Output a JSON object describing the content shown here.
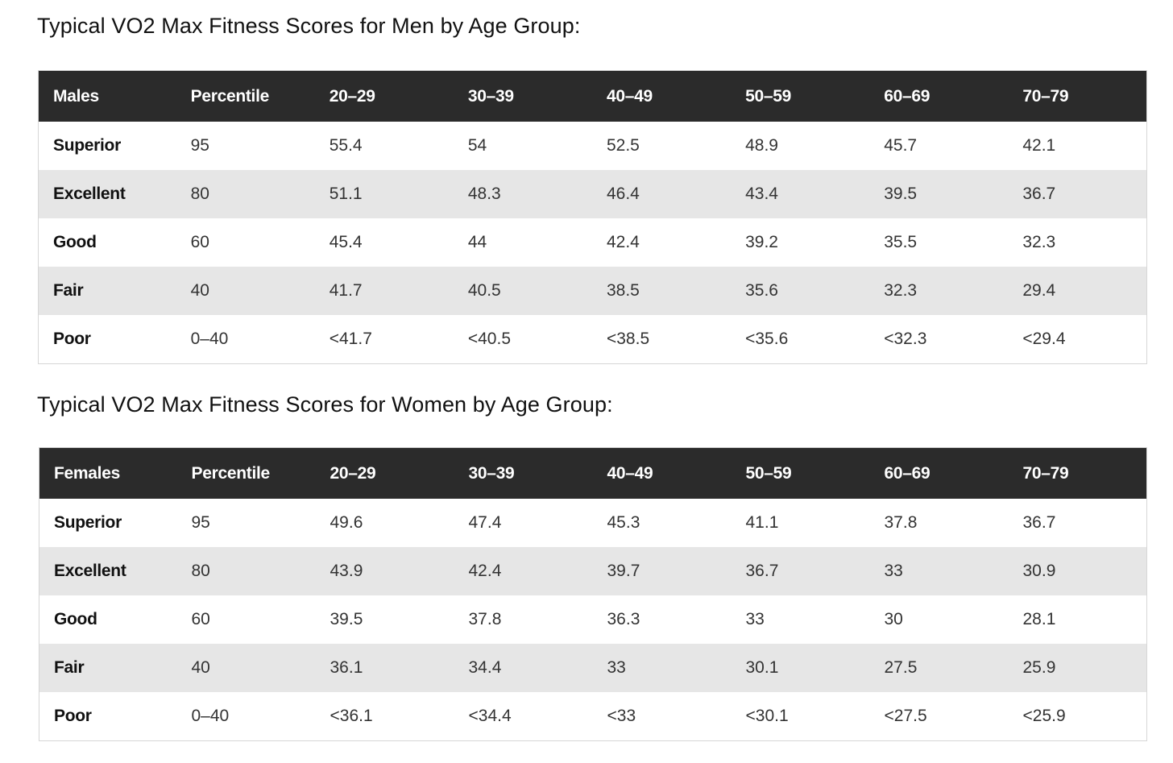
{
  "men": {
    "heading": "Typical VO2 Max Fitness Scores for Men by Age Group:",
    "headers": [
      "Males",
      "Percentile",
      "20–29",
      "30–39",
      "40–49",
      "50–59",
      "60–69",
      "70–79"
    ],
    "rows": [
      [
        "Superior",
        "95",
        "55.4",
        "54",
        "52.5",
        "48.9",
        "45.7",
        "42.1"
      ],
      [
        "Excellent",
        "80",
        "51.1",
        "48.3",
        "46.4",
        "43.4",
        "39.5",
        "36.7"
      ],
      [
        "Good",
        "60",
        "45.4",
        "44",
        "42.4",
        "39.2",
        "35.5",
        "32.3"
      ],
      [
        "Fair",
        "40",
        "41.7",
        "40.5",
        "38.5",
        "35.6",
        "32.3",
        "29.4"
      ],
      [
        "Poor",
        "0–40",
        "<41.7",
        "<40.5",
        "<38.5",
        "<35.6",
        "<32.3",
        "<29.4"
      ]
    ]
  },
  "women": {
    "heading": "Typical VO2 Max Fitness Scores for Women by Age Group:",
    "headers": [
      "Females",
      "Percentile",
      "20–29",
      "30–39",
      "40–49",
      "50–59",
      "60–69",
      "70–79"
    ],
    "rows": [
      [
        "Superior",
        "95",
        "49.6",
        "47.4",
        "45.3",
        "41.1",
        "37.8",
        "36.7"
      ],
      [
        "Excellent",
        "80",
        "43.9",
        "42.4",
        "39.7",
        "36.7",
        "33",
        "30.9"
      ],
      [
        "Good",
        "60",
        "39.5",
        "37.8",
        "36.3",
        "33",
        "30",
        "28.1"
      ],
      [
        "Fair",
        "40",
        "36.1",
        "34.4",
        "33",
        "30.1",
        "27.5",
        "25.9"
      ],
      [
        "Poor",
        "0–40",
        "<36.1",
        "<34.4",
        "<33",
        "<30.1",
        "<27.5",
        "<25.9"
      ]
    ]
  }
}
